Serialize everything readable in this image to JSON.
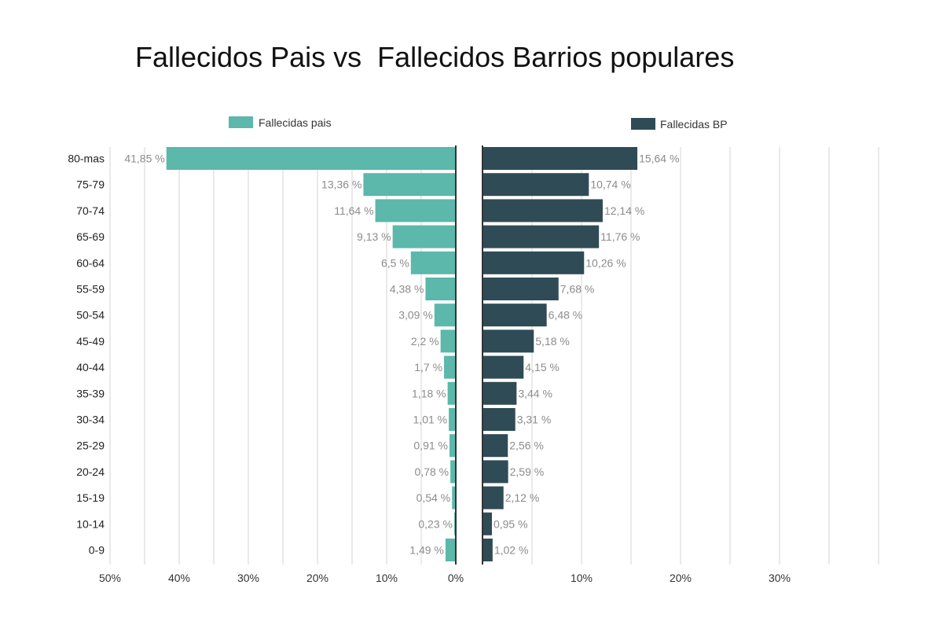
{
  "chart_data": {
    "type": "bar",
    "title": "Fallecidos Pais vs  Fallecidos Barrios populares",
    "categories": [
      "80-mas",
      "75-79",
      "70-74",
      "65-69",
      "60-64",
      "55-59",
      "50-54",
      "45-49",
      "40-44",
      "35-39",
      "30-34",
      "25-29",
      "20-24",
      "15-19",
      "10-14",
      "0-9"
    ],
    "series": [
      {
        "name": "Fallecidas pais",
        "color": "#5bb8ab",
        "values": [
          41.85,
          13.36,
          11.64,
          9.13,
          6.5,
          4.38,
          3.09,
          2.2,
          1.7,
          1.18,
          1.01,
          0.91,
          0.78,
          0.54,
          0.23,
          1.49
        ],
        "labels": [
          "41,85 %",
          "13,36 %",
          "11,64 %",
          "9,13 %",
          "6,5 %",
          "4,38 %",
          "3,09 %",
          "2,2 %",
          "1,7 %",
          "1,18 %",
          "1,01 %",
          "0,91 %",
          "0,78 %",
          "0,54 %",
          "0,23 %",
          "1,49 %"
        ],
        "xlim": [
          50,
          0
        ],
        "xticks": [
          "50%",
          "40%",
          "30%",
          "20%",
          "10%",
          "0%"
        ]
      },
      {
        "name": "Fallecidas BP",
        "color": "#2f4b56",
        "values": [
          15.64,
          10.74,
          12.14,
          11.76,
          10.26,
          7.68,
          6.48,
          5.18,
          4.15,
          3.44,
          3.31,
          2.56,
          2.59,
          2.12,
          0.95,
          1.02
        ],
        "labels": [
          "15,64 %",
          "10,74 %",
          "12,14 %",
          "11,76 %",
          "10,26 %",
          "7,68 %",
          "6,48 %",
          "5,18 %",
          "4,15 %",
          "3,44 %",
          "3,31 %",
          "2,56 %",
          "2,59 %",
          "2,12 %",
          "0,95 %",
          "1,02 %"
        ],
        "xlim": [
          0,
          40
        ],
        "xticks": [
          "10%",
          "20%",
          "30%"
        ]
      }
    ],
    "grid": true,
    "legend": "top"
  }
}
